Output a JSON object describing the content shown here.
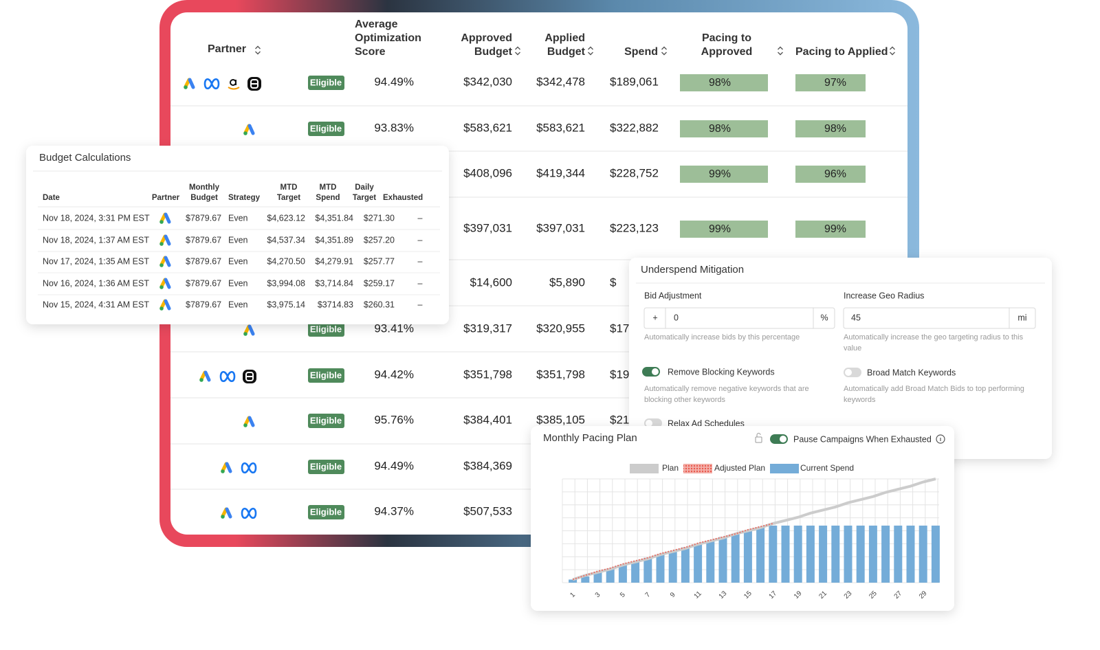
{
  "table": {
    "headers": [
      [
        "Partner"
      ],
      [
        "Average",
        "Optimization",
        "Score"
      ],
      [
        "Approved",
        "Budget"
      ],
      [
        "Applied",
        "Budget"
      ],
      [
        "Spend"
      ],
      [
        "Pacing to",
        "Approved"
      ],
      [
        "Pacing to Applied"
      ]
    ],
    "rows": [
      {
        "badge": "Eligible",
        "score": "94.49%",
        "approved": "$342,030",
        "applied": "$342,478",
        "spend": "$189,061",
        "pacing_approved": "98%",
        "pacing_applied": "97%"
      },
      {
        "badge": "Eligible",
        "score": "93.83%",
        "approved": "$583,621",
        "applied": "$583,621",
        "spend": "$322,882",
        "pacing_approved": "98%",
        "pacing_applied": "98%"
      },
      {
        "approved": "$408,096",
        "applied": "$419,344",
        "spend": "$228,752",
        "pacing_approved": "99%",
        "pacing_applied": "96%"
      },
      {
        "approved": "$397,031",
        "applied": "$397,031",
        "spend": "$223,123",
        "pacing_approved": "99%",
        "pacing_applied": "99%"
      },
      {
        "approved": "$14,600",
        "applied": "$5,890",
        "spend": "$"
      },
      {
        "badge": "Eligible",
        "score": "93.41%",
        "approved": "$319,317",
        "applied": "$320,955",
        "spend": "$17"
      },
      {
        "badge": "Eligible",
        "score": "94.42%",
        "approved": "$351,798",
        "applied": "$351,798",
        "spend": "$19"
      },
      {
        "badge": "Eligible",
        "score": "95.76%",
        "approved": "$384,401",
        "applied": "$385,105",
        "spend": "$21"
      },
      {
        "badge": "Eligible",
        "score": "94.49%",
        "approved": "$384,369"
      },
      {
        "badge": "Eligible",
        "score": "94.37%",
        "approved": "$507,533"
      }
    ]
  },
  "budget": {
    "title": "Budget Calculations",
    "headers": [
      [
        "Date"
      ],
      [
        "Partner"
      ],
      [
        "Monthly",
        "Budget"
      ],
      [
        "Strategy"
      ],
      [
        "MTD",
        "Target"
      ],
      [
        "MTD",
        "Spend"
      ],
      [
        "Daily",
        "Target"
      ],
      [
        "Exhausted"
      ]
    ],
    "rows": [
      [
        "Nov 18, 2024, 3:31 PM EST",
        "$7879.67",
        "Even",
        "$4,623.12",
        "$4,351.84",
        "$271.30",
        "–"
      ],
      [
        "Nov 18, 2024, 1:37 AM EST",
        "$7879.67",
        "Even",
        "$4,537.34",
        "$4,351.89",
        "$257.20",
        "–"
      ],
      [
        "Nov 17, 2024, 1:35 AM EST",
        "$7879.67",
        "Even",
        "$4,270.50",
        "$4,279.91",
        "$257.77",
        "–"
      ],
      [
        "Nov 16, 2024, 1:36 AM EST",
        "$7879.67",
        "Even",
        "$3,994.08",
        "$3,714.84",
        "$259.17",
        "–"
      ],
      [
        "Nov 15, 2024, 4:31 AM EST",
        "$7879.67",
        "Even",
        "$3,975.14",
        "$3714.83",
        "$260.31",
        "–"
      ]
    ]
  },
  "underspend": {
    "title": "Underspend Mitigation",
    "bid": {
      "label": "Bid Adjustment",
      "prefix": "+",
      "value": "0",
      "suffix": "%",
      "help": [
        "Automatically increase bids by this percentage"
      ]
    },
    "geo": {
      "label": "Increase Geo Radius",
      "value": "45",
      "suffix": "mi",
      "help": [
        "Automatically increase the geo targeting radius to this",
        "value"
      ]
    },
    "toggles": [
      {
        "label": "Remove Blocking Keywords",
        "on": true,
        "help": [
          "Automatically remove negative keywords that are",
          "blocking other keywords"
        ]
      },
      {
        "label": "Broad Match Keywords",
        "on": false,
        "help": [
          "Automatically add Broad Match Bids to top performing",
          "keywords"
        ]
      },
      {
        "label": "Relax Ad Schedules",
        "on": false
      }
    ]
  },
  "chart_data": {
    "type": "bar",
    "title": "Monthly Pacing Plan",
    "toggle": {
      "label": "Pause Campaigns When Exhausted",
      "on": true
    },
    "categories": [
      "1",
      null,
      "3",
      null,
      "5",
      null,
      "7",
      null,
      "9",
      null,
      "11",
      null,
      "13",
      null,
      "15",
      null,
      "17",
      null,
      "19",
      null,
      "21",
      null,
      "23",
      null,
      "25",
      null,
      "27",
      null,
      "29",
      null
    ],
    "ylim": [
      0,
      100
    ],
    "series": [
      {
        "name": "Plan",
        "color": "#cccccc",
        "type": "line",
        "values": [
          3,
          7,
          10,
          13,
          17,
          20,
          23,
          27,
          30,
          33,
          37,
          40,
          43,
          47,
          50,
          53,
          57,
          60,
          63,
          67,
          70,
          73,
          77,
          80,
          83,
          87,
          90,
          93,
          97,
          100
        ]
      },
      {
        "name": "Adjusted Plan",
        "color": "#e8746a",
        "type": "line",
        "values": [
          3,
          7,
          11,
          14,
          18,
          21,
          24,
          28,
          31,
          34,
          38,
          41,
          44,
          47,
          51,
          54,
          57,
          null,
          null,
          null,
          null,
          null,
          null,
          null,
          null,
          null,
          null,
          null,
          null,
          null
        ]
      },
      {
        "name": "Current Spend",
        "color": "#74acd8",
        "type": "bar",
        "values": [
          3,
          6,
          10,
          13,
          17,
          20,
          24,
          27,
          30,
          34,
          37,
          40,
          44,
          47,
          50,
          53,
          55,
          55,
          55,
          55,
          55,
          55,
          55,
          55,
          55,
          55,
          55,
          55,
          55,
          55
        ]
      }
    ]
  }
}
